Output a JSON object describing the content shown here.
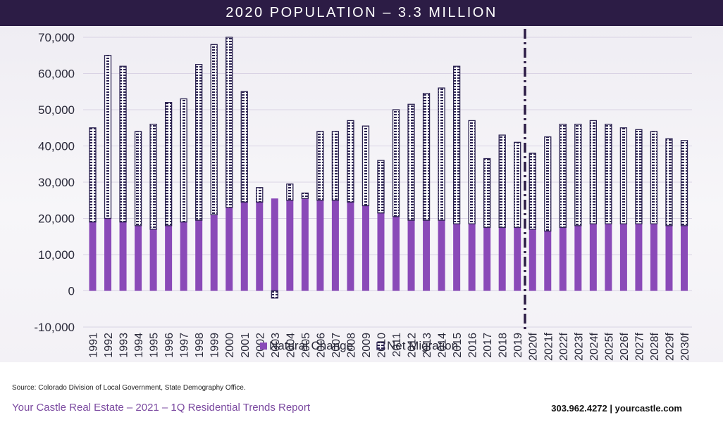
{
  "header": {
    "title": "2020 POPULATION – 3.3 MILLION"
  },
  "footer": {
    "source": "Source: Colorado Division of Local Government, State Demography Office.",
    "report": "Your Castle Real Estate – 2021 – 1Q Residential Trends Report",
    "contact": "303.962.4272 | yourcastle.com"
  },
  "colors": {
    "natural": "#8a4ab8",
    "migration_stroke": "#2b2250",
    "migration_fill": "#ffffff",
    "forecast_line": "#2c1c45"
  },
  "chart_data": {
    "type": "bar",
    "stacked": true,
    "title": "2020 POPULATION – 3.3 MILLION",
    "xlabel": "",
    "ylabel": "",
    "ylim": [
      -10000,
      70000
    ],
    "yticks": [
      -10000,
      0,
      10000,
      20000,
      30000,
      40000,
      50000,
      60000,
      70000
    ],
    "ytick_labels": [
      "-10,000",
      "0",
      "10,000",
      "20,000",
      "30,000",
      "40,000",
      "50,000",
      "60,000",
      "70,000"
    ],
    "grid": true,
    "legend_position": "bottom-center",
    "forecast_divider_between": [
      "2019",
      "2020f"
    ],
    "categories": [
      "1991",
      "1992",
      "1993",
      "1994",
      "1995",
      "1996",
      "1997",
      "1998",
      "1999",
      "2000",
      "2001",
      "2002",
      "2003",
      "2004",
      "2005",
      "2006",
      "2007",
      "2008",
      "2009",
      "2010",
      "2011",
      "2012",
      "2013",
      "2014",
      "2015",
      "2016",
      "2017",
      "2018",
      "2019",
      "2020f",
      "2021f",
      "2022f",
      "2023f",
      "2024f",
      "2025f",
      "2026f",
      "2027f",
      "2028f",
      "2029f",
      "2030f"
    ],
    "series": [
      {
        "name": "Natural Change",
        "values": [
          19000,
          20000,
          19000,
          18000,
          17000,
          18000,
          19000,
          19500,
          21000,
          23000,
          24500,
          24500,
          25500,
          25000,
          25500,
          25000,
          25000,
          24500,
          23500,
          21500,
          20500,
          19500,
          19500,
          19500,
          18500,
          18500,
          17500,
          17500,
          17500,
          17000,
          16500,
          17500,
          18000,
          18500,
          18500,
          18500,
          18500,
          18500,
          18000,
          18000
        ]
      },
      {
        "name": "Net Migration",
        "values": [
          26000,
          45000,
          43000,
          26000,
          29000,
          34000,
          34000,
          43000,
          47000,
          47000,
          30500,
          4000,
          -2000,
          4500,
          1500,
          19000,
          19000,
          22500,
          22000,
          14500,
          29500,
          32000,
          35000,
          36500,
          43500,
          28500,
          19000,
          25500,
          23500,
          21000,
          26000,
          28500,
          28000,
          28500,
          27500,
          26500,
          26000,
          25500,
          24000,
          23500
        ]
      }
    ]
  }
}
